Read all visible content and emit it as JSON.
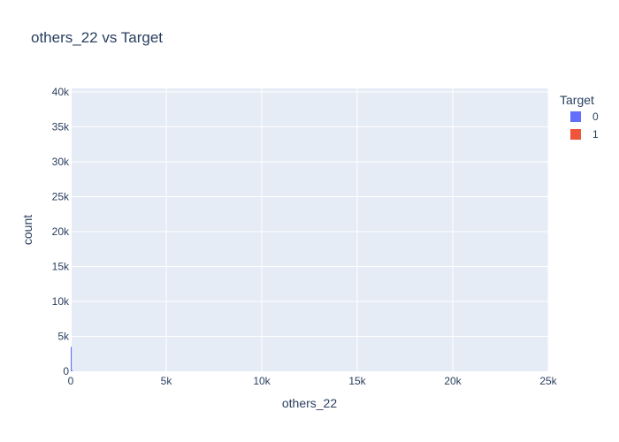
{
  "chart_data": {
    "type": "bar",
    "title": "others_22 vs Target",
    "xlabel": "others_22",
    "ylabel": "count",
    "xlim": [
      0,
      25000
    ],
    "ylim": [
      0,
      40500
    ],
    "x_ticks": [
      0,
      5000,
      10000,
      15000,
      20000,
      25000
    ],
    "x_tick_labels": [
      "0",
      "5k",
      "10k",
      "15k",
      "20k",
      "25k"
    ],
    "y_ticks": [
      0,
      5000,
      10000,
      15000,
      20000,
      25000,
      30000,
      35000,
      40000
    ],
    "y_tick_labels": [
      "0",
      "5k",
      "10k",
      "15k",
      "20k",
      "25k",
      "30k",
      "35k",
      "40k"
    ],
    "grid": true,
    "legend": {
      "title": "Target",
      "placement": "top-right"
    },
    "series": [
      {
        "name": "0",
        "color": "#636efa",
        "x": [
          0,
          50
        ],
        "values": [
          3500,
          150
        ]
      },
      {
        "name": "1",
        "color": "#EF553B",
        "x": [
          0,
          50
        ],
        "values": [
          0,
          0
        ]
      }
    ]
  }
}
